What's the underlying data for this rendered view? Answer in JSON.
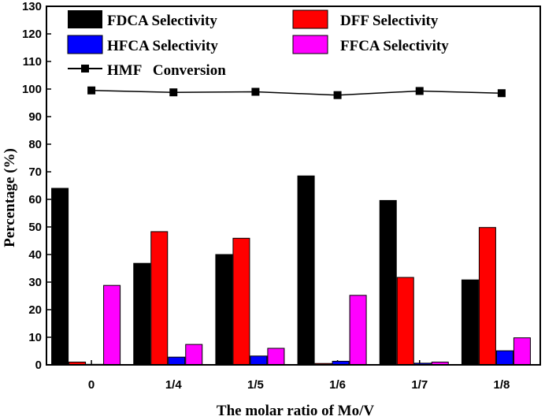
{
  "chart_data": {
    "type": "bar",
    "title": "",
    "xlabel": "The molar ratio of Mo/V",
    "ylabel": "Percentage (%)",
    "ylim": [
      0,
      130
    ],
    "yticks": [
      0,
      10,
      20,
      30,
      40,
      50,
      60,
      70,
      80,
      90,
      100,
      110,
      120,
      130
    ],
    "categories": [
      "0",
      "1/4",
      "1/5",
      "1/6",
      "1/7",
      "1/8"
    ],
    "series": [
      {
        "name": "FDCA Selectivity",
        "kind": "bar",
        "color": "#000000",
        "values": [
          64.0,
          36.8,
          40.0,
          68.5,
          59.6,
          30.8
        ]
      },
      {
        "name": "DFF Selectivity",
        "kind": "bar",
        "color": "#ff0000",
        "values": [
          1.0,
          48.3,
          45.9,
          0.5,
          31.7,
          49.8
        ]
      },
      {
        "name": "HFCA Selectivity",
        "kind": "bar",
        "color": "#0000ff",
        "values": [
          0.2,
          2.8,
          3.2,
          1.3,
          0.6,
          5.1
        ]
      },
      {
        "name": "FFCA Selectivity",
        "kind": "bar",
        "color": "#ff00ff",
        "values": [
          28.8,
          7.4,
          6.0,
          25.2,
          1.0,
          9.8
        ]
      },
      {
        "name": "HMF   Conversion",
        "kind": "line",
        "color": "#000000",
        "values": [
          99.5,
          98.8,
          99.0,
          97.8,
          99.3,
          98.5
        ]
      }
    ],
    "legend_position": "top-left",
    "grid": false
  }
}
